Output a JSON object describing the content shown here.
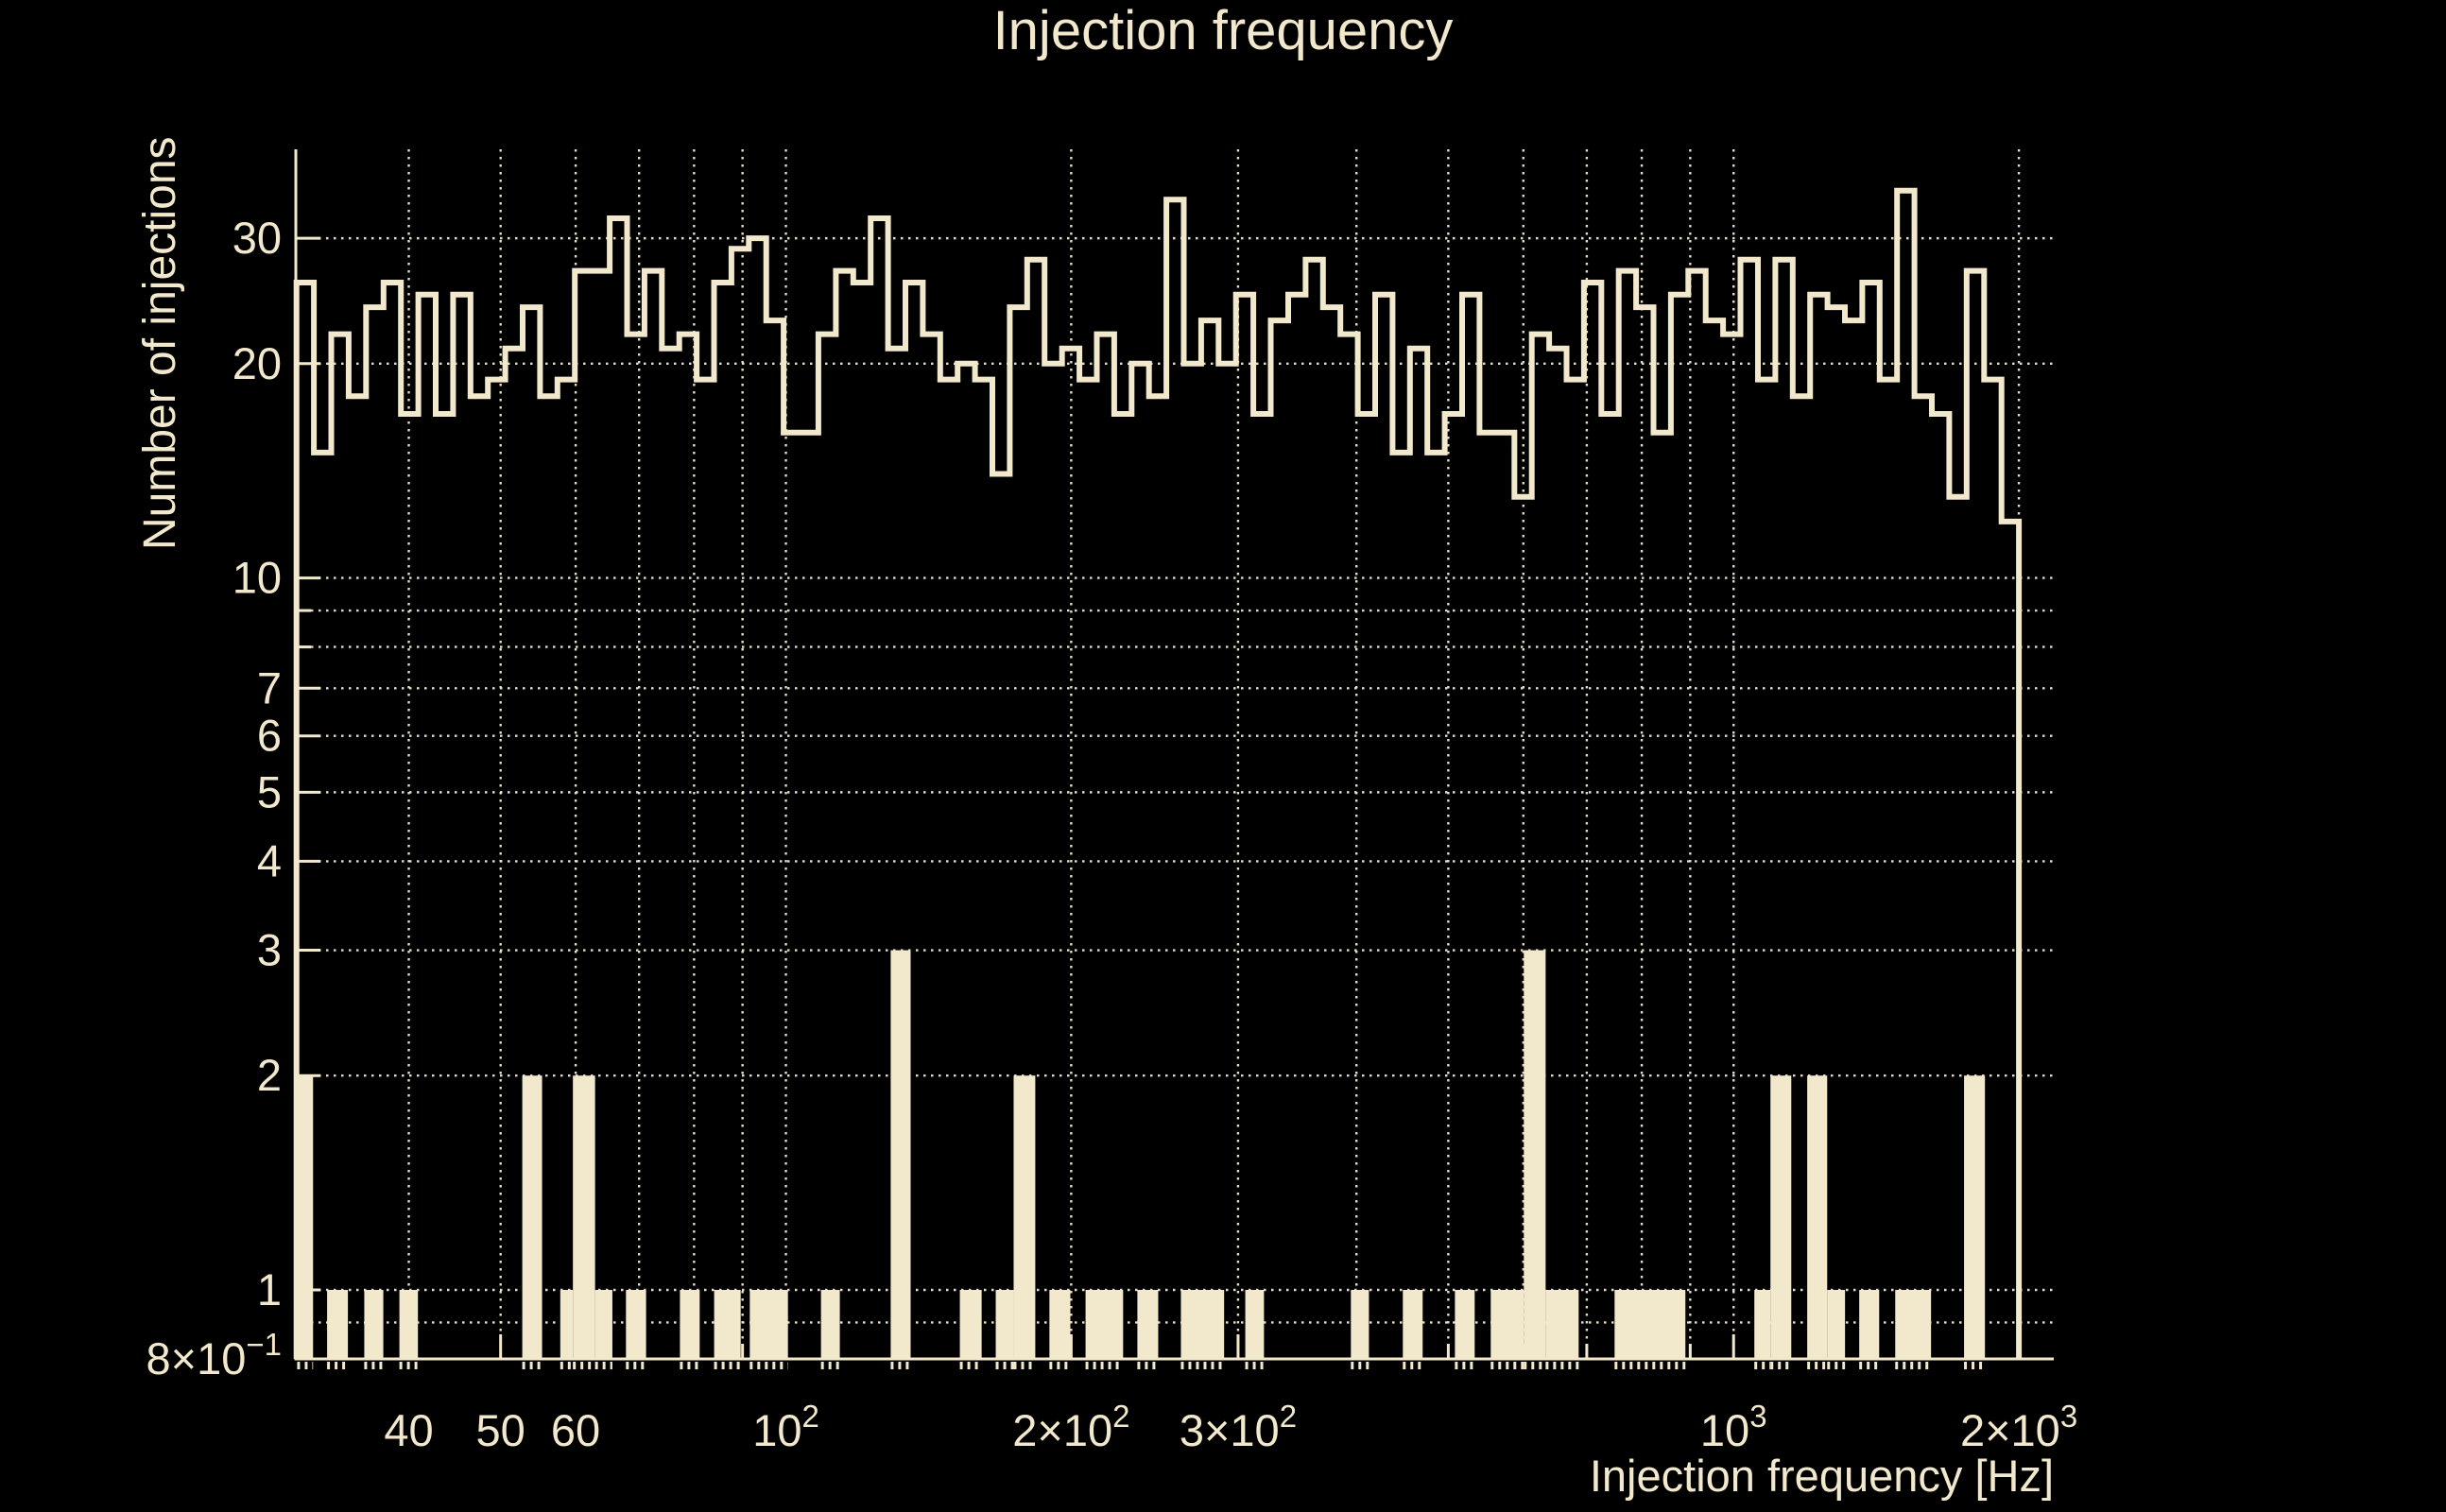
{
  "chart_data": {
    "type": "bar",
    "subtype": "log-log-step-histogram-with-filled-histogram",
    "title": "Injection frequency",
    "xlabel": "Injection frequency [Hz]",
    "ylabel": "Number of injections",
    "x_scale": "log",
    "y_scale": "log",
    "xlim": [
      30.4,
      2177
    ],
    "ylim": [
      0.8,
      40
    ],
    "grid": true,
    "legend_position": "none",
    "colors": {
      "background": "#000000",
      "foreground": "#f2e8cc"
    },
    "x_ticks": [
      {
        "value": 40,
        "base": "40"
      },
      {
        "value": 50,
        "base": "50"
      },
      {
        "value": 60,
        "base": "60"
      },
      {
        "value": 100,
        "base": "10",
        "sup": "2"
      },
      {
        "value": 200,
        "base": "2×10",
        "sup": "2"
      },
      {
        "value": 300,
        "base": "3×10",
        "sup": "2"
      },
      {
        "value": 1000,
        "base": "10",
        "sup": "3"
      },
      {
        "value": 2000,
        "base": "2×10",
        "sup": "3"
      }
    ],
    "x_minor_ticks": [
      70,
      80,
      90,
      400,
      500,
      600,
      700,
      800,
      900
    ],
    "x_grid_values": [
      40,
      50,
      60,
      70,
      80,
      90,
      100,
      200,
      300,
      400,
      500,
      600,
      700,
      800,
      900,
      1000,
      2000
    ],
    "y_ticks": [
      {
        "value": 30,
        "base": "30"
      },
      {
        "value": 20,
        "base": "20"
      },
      {
        "value": 10,
        "base": "10"
      },
      {
        "value": 7,
        "base": "7"
      },
      {
        "value": 6,
        "base": "6"
      },
      {
        "value": 5,
        "base": "5"
      },
      {
        "value": 4,
        "base": "4"
      },
      {
        "value": 3,
        "base": "3"
      },
      {
        "value": 2,
        "base": "2"
      },
      {
        "value": 1,
        "base": "1"
      },
      {
        "value": 0.8,
        "base": "8×10",
        "sup": "−1"
      }
    ],
    "y_minor_ticks": [
      0.9,
      8,
      9
    ],
    "y_grid_values": [
      0.9,
      1,
      2,
      3,
      4,
      5,
      6,
      7,
      8,
      9,
      10,
      20,
      30
    ],
    "series": [
      {
        "name": "injections-per-frequency-outline",
        "style": "step-outline",
        "bin_edges_log_spaced": {
          "first_edge_hz": 30.45,
          "last_edge_hz": 2000,
          "n_bins": 99
        },
        "values": [
          26,
          15,
          22,
          18,
          24,
          26,
          17,
          25,
          17,
          25,
          18,
          19,
          21,
          24,
          18,
          19,
          27,
          27,
          32,
          22,
          27,
          21,
          22,
          19,
          26,
          29,
          30,
          23,
          16,
          16,
          22,
          27,
          26,
          32,
          21,
          26,
          22,
          19,
          20,
          19,
          14,
          24,
          28,
          20,
          21,
          19,
          22,
          17,
          20,
          18,
          34,
          20,
          23,
          20,
          25,
          17,
          23,
          25,
          28,
          24,
          22,
          17,
          25,
          15,
          21,
          15,
          17,
          25,
          16,
          16,
          13,
          22,
          21,
          19,
          26,
          17,
          27,
          24,
          16,
          25,
          27,
          23,
          22,
          28,
          19,
          28,
          18,
          25,
          24,
          23,
          26,
          19,
          35,
          18,
          17,
          13,
          27,
          19,
          12
        ]
      },
      {
        "name": "injections-per-frequency-filled",
        "style": "filled-bars",
        "bars_f1_f2_count": [
          [
            30.5,
            31.7,
            2
          ],
          [
            32.8,
            34.5,
            1
          ],
          [
            35.9,
            37.6,
            1
          ],
          [
            39.1,
            40.9,
            1
          ],
          [
            52.7,
            55.3,
            2
          ],
          [
            57.8,
            59.6,
            1
          ],
          [
            59.6,
            62.9,
            2
          ],
          [
            62.9,
            65.6,
            1
          ],
          [
            67.8,
            71.2,
            1
          ],
          [
            77.3,
            81.1,
            1
          ],
          [
            84.0,
            89.6,
            1
          ],
          [
            91.6,
            100.5,
            1
          ],
          [
            108.9,
            114.0,
            1
          ],
          [
            129.0,
            135.4,
            3
          ],
          [
            152.6,
            160.9,
            1
          ],
          [
            166.5,
            173.9,
            1
          ],
          [
            173.9,
            183.3,
            2
          ],
          [
            189.7,
            199.6,
            1
          ],
          [
            207.1,
            226.9,
            1
          ],
          [
            234.9,
            247.1,
            1
          ],
          [
            261.1,
            290.0,
            1
          ],
          [
            305.3,
            319.5,
            1
          ],
          [
            394.6,
            412.3,
            1
          ],
          [
            447.7,
            469.8,
            1
          ],
          [
            508.1,
            533.1,
            1
          ],
          [
            554.3,
            600.7,
            1
          ],
          [
            600.7,
            633.4,
            3
          ],
          [
            633.4,
            686.3,
            1
          ],
          [
            748.9,
            889.5,
            1
          ],
          [
            1051.7,
            1093.7,
            1
          ],
          [
            1093.7,
            1150.5,
            2
          ],
          [
            1195.9,
            1255.4,
            2
          ],
          [
            1255.4,
            1311.0,
            1
          ],
          [
            1357.0,
            1424.4,
            1
          ],
          [
            1481.0,
            1615.7,
            1
          ],
          [
            1750.6,
            1841.8,
            2
          ]
        ]
      }
    ]
  }
}
